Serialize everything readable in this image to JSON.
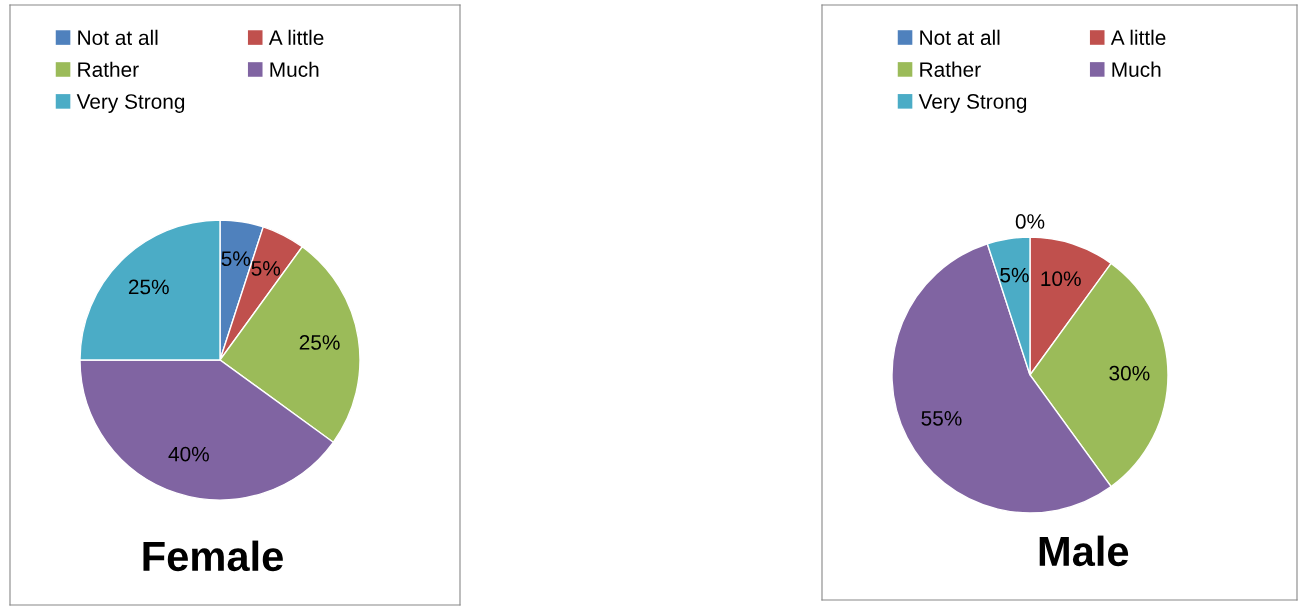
{
  "chart_data": [
    {
      "type": "pie",
      "title": "Female",
      "categories": [
        "Not at all",
        "A little",
        "Rather",
        "Much",
        "Very Strong"
      ],
      "values": [
        5,
        5,
        25,
        40,
        25
      ],
      "value_labels": [
        "5%",
        "5%",
        "25%",
        "40%",
        "25%"
      ],
      "colors": [
        "#4f81bd",
        "#c0504d",
        "#9bbb59",
        "#8064a2",
        "#4bacc6"
      ],
      "legend": "top"
    },
    {
      "type": "pie",
      "title": "Male",
      "categories": [
        "Not at all",
        "A little",
        "Rather",
        "Much",
        "Very Strong"
      ],
      "values": [
        0,
        10,
        30,
        55,
        5
      ],
      "value_labels": [
        "0%",
        "10%",
        "30%",
        "55%",
        "5%"
      ],
      "colors": [
        "#4f81bd",
        "#c0504d",
        "#9bbb59",
        "#8064a2",
        "#4bacc6"
      ],
      "legend": "top"
    }
  ]
}
